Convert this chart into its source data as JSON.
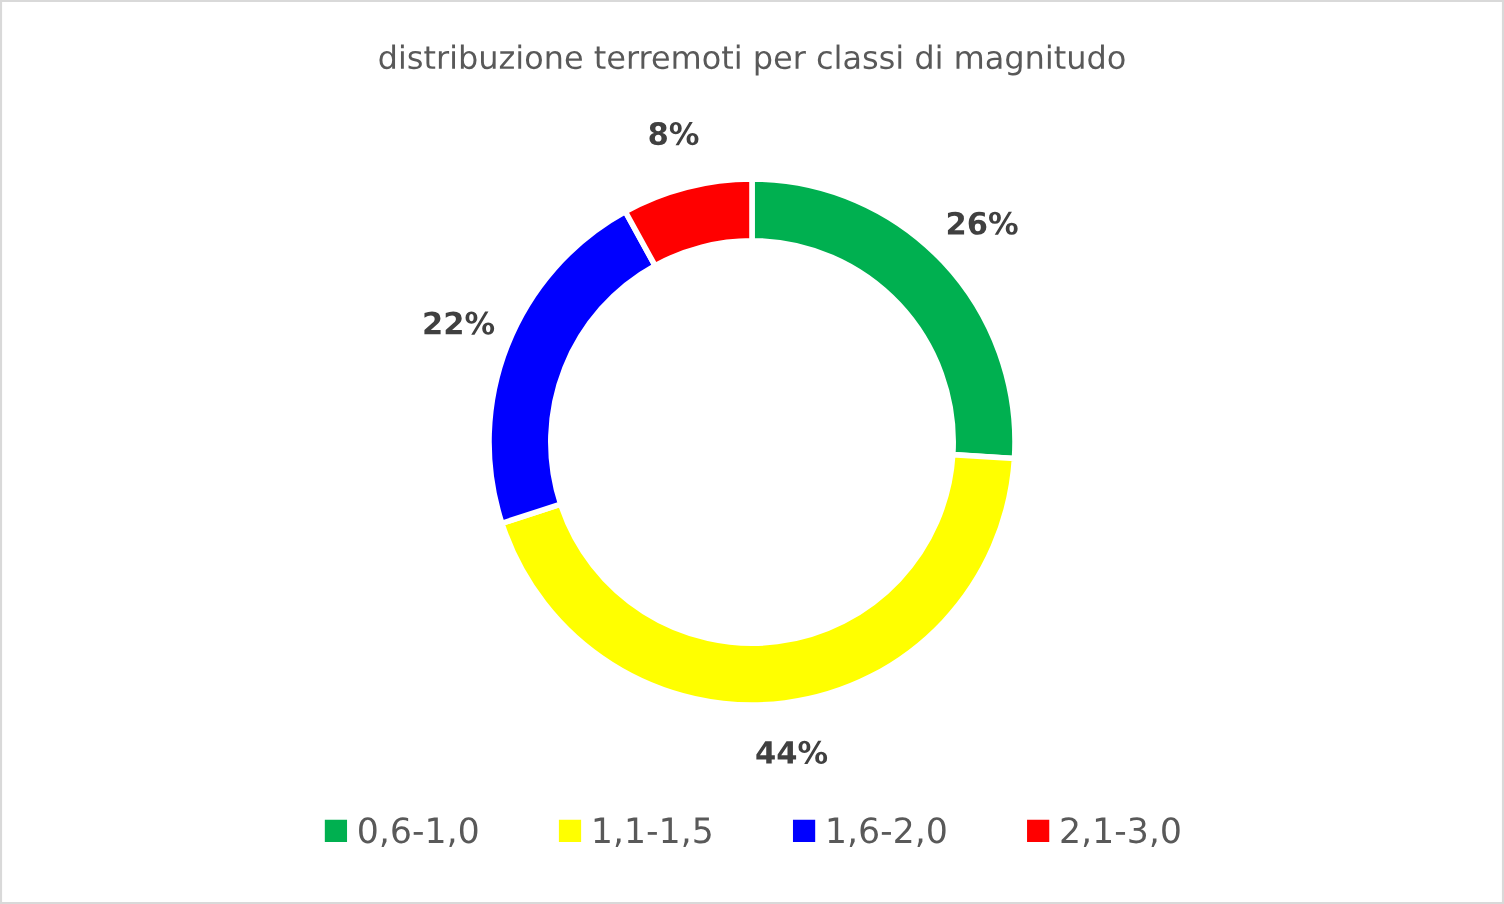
{
  "chart_data": {
    "type": "donut",
    "title": "distribuzione terremoti per classi di magnitudo",
    "categories": [
      "0,6-1,0",
      "1,1-1,5",
      "1,6-2,0",
      "2,1-3,0"
    ],
    "values": [
      26,
      44,
      22,
      8
    ],
    "colors": [
      "#00b050",
      "#ffff00",
      "#0000ff",
      "#ff0000"
    ],
    "value_labels": [
      "26%",
      "44%",
      "22%",
      "8%"
    ],
    "legend": "bottom"
  }
}
